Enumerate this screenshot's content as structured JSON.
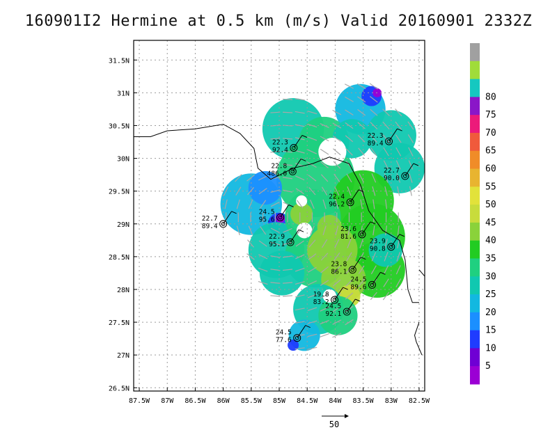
{
  "title": "160901I2 Hermine at 0.5 km (m/s) Valid 20160901 2332Z",
  "map": {
    "lon_range": [
      -87.6,
      -82.4
    ],
    "lat_range": [
      26.45,
      31.8
    ],
    "x_ticks": [
      "87.5W",
      "87W",
      "86.5W",
      "86W",
      "85.5W",
      "85W",
      "84.5W",
      "84W",
      "83.5W",
      "83W",
      "82.5W"
    ],
    "x_tick_values": [
      -87.5,
      -87,
      -86.5,
      -86,
      -85.5,
      -85,
      -84.5,
      -84,
      -83.5,
      -83,
      -82.5
    ],
    "y_ticks": [
      "26.5N",
      "27N",
      "27.5N",
      "28N",
      "28.5N",
      "29N",
      "29.5N",
      "30N",
      "30.5N",
      "31N",
      "31.5N"
    ],
    "y_tick_values": [
      26.5,
      27,
      27.5,
      28,
      28.5,
      29,
      29.5,
      30,
      30.5,
      31,
      31.5
    ],
    "grid": true
  },
  "colorbar": {
    "colors": [
      "#9b00d4",
      "#6f00d4",
      "#1f3cff",
      "#1b8fff",
      "#12b8e0",
      "#10c8b0",
      "#1fd080",
      "#22cc22",
      "#8ad23a",
      "#c8dc3c",
      "#e2e23a",
      "#e8b430",
      "#f08c28",
      "#f05a3c",
      "#ec1a7a",
      "#8a16c8",
      "#15c8c0",
      "#a0dc3a",
      "#a0a0a0"
    ],
    "labels": [
      "5",
      "10",
      "15",
      "20",
      "25",
      "30",
      "35",
      "40",
      "45",
      "50",
      "55",
      "60",
      "65",
      "70",
      "75",
      "80"
    ]
  },
  "reference_vector": {
    "label": "50"
  },
  "stations": [
    {
      "t": "22.3",
      "v": "92.4",
      "lon": -84.74,
      "lat": 30.16
    },
    {
      "t": "22.3",
      "v": "89.4",
      "lon": -83.04,
      "lat": 30.26
    },
    {
      "t": "22.8",
      "v": "486.0",
      "lon": -84.76,
      "lat": 29.8
    },
    {
      "t": "22.7",
      "v": "90.0",
      "lon": -82.75,
      "lat": 29.73
    },
    {
      "t": "22.4",
      "v": "96.2",
      "lon": -83.73,
      "lat": 29.33
    },
    {
      "t": "24.5",
      "v": "95.6",
      "lon": -84.98,
      "lat": 29.1
    },
    {
      "t": "22.7",
      "v": "89.4",
      "lon": -86.0,
      "lat": 29.0
    },
    {
      "t": "23.6",
      "v": "81.6",
      "lon": -83.52,
      "lat": 28.84
    },
    {
      "t": "22.9",
      "v": "95.1",
      "lon": -84.8,
      "lat": 28.72
    },
    {
      "t": "23.9",
      "v": "90.8",
      "lon": -83.0,
      "lat": 28.65
    },
    {
      "t": "23.8",
      "v": "86.1",
      "lon": -83.69,
      "lat": 28.3
    },
    {
      "t": "24.5",
      "v": "89.6",
      "lon": -83.34,
      "lat": 28.07
    },
    {
      "t": "19.8",
      "v": "83.2",
      "lon": -84.01,
      "lat": 27.84
    },
    {
      "t": "24.5",
      "v": "92.1",
      "lon": -83.79,
      "lat": 27.66
    },
    {
      "t": "24.5",
      "v": "77.6",
      "lon": -84.68,
      "lat": 27.26
    }
  ],
  "coastline": [
    [
      [
        -87.6,
        30.33
      ],
      [
        -87.3,
        30.33
      ],
      [
        -87.0,
        30.42
      ],
      [
        -86.5,
        30.45
      ],
      [
        -86.0,
        30.52
      ],
      [
        -85.7,
        30.38
      ],
      [
        -85.45,
        30.15
      ],
      [
        -85.38,
        29.85
      ],
      [
        -85.15,
        29.68
      ],
      [
        -84.75,
        29.85
      ],
      [
        -84.4,
        29.92
      ],
      [
        -84.1,
        30.02
      ],
      [
        -83.75,
        29.92
      ],
      [
        -83.55,
        29.6
      ],
      [
        -83.4,
        29.2
      ],
      [
        -83.15,
        28.9
      ],
      [
        -82.85,
        28.75
      ],
      [
        -82.75,
        28.45
      ],
      [
        -82.7,
        28.0
      ],
      [
        -82.62,
        27.8
      ],
      [
        -82.5,
        27.8
      ]
    ],
    [
      [
        -82.5,
        27.5
      ],
      [
        -82.58,
        27.3
      ],
      [
        -82.55,
        27.2
      ],
      [
        -82.45,
        27.0
      ]
    ],
    [
      [
        -82.5,
        28.3
      ],
      [
        -82.4,
        28.2
      ]
    ]
  ],
  "intensity_field": [
    {
      "lon": -84.75,
      "lat": 30.45,
      "r": 0.55,
      "c": "#10c8b0"
    },
    {
      "lon": -83.55,
      "lat": 30.75,
      "r": 0.45,
      "c": "#12b8e0"
    },
    {
      "lon": -83.35,
      "lat": 30.95,
      "r": 0.18,
      "c": "#1f3cff"
    },
    {
      "lon": -83.25,
      "lat": 31.0,
      "r": 0.08,
      "c": "#9b00d4"
    },
    {
      "lon": -83.0,
      "lat": 30.35,
      "r": 0.45,
      "c": "#10c8b0"
    },
    {
      "lon": -82.85,
      "lat": 29.85,
      "r": 0.45,
      "c": "#10c8b0"
    },
    {
      "lon": -84.2,
      "lat": 30.25,
      "r": 0.45,
      "c": "#1fd080"
    },
    {
      "lon": -84.35,
      "lat": 29.7,
      "r": 0.7,
      "c": "#1fd080"
    },
    {
      "lon": -85.5,
      "lat": 29.3,
      "r": 0.55,
      "c": "#12b8e0"
    },
    {
      "lon": -85.25,
      "lat": 29.55,
      "r": 0.3,
      "c": "#1b8fff"
    },
    {
      "lon": -85.0,
      "lat": 29.0,
      "r": 0.2,
      "c": "#1f3cff"
    },
    {
      "lon": -84.98,
      "lat": 29.08,
      "r": 0.08,
      "c": "#9b00d4"
    },
    {
      "lon": -85.05,
      "lat": 28.6,
      "r": 0.5,
      "c": "#10c8b0"
    },
    {
      "lon": -83.5,
      "lat": 29.35,
      "r": 0.55,
      "c": "#22cc22"
    },
    {
      "lon": -83.35,
      "lat": 28.8,
      "r": 0.6,
      "c": "#22cc22"
    },
    {
      "lon": -83.25,
      "lat": 28.3,
      "r": 0.5,
      "c": "#22cc22"
    },
    {
      "lon": -84.35,
      "lat": 28.5,
      "r": 0.55,
      "c": "#1fd080"
    },
    {
      "lon": -84.4,
      "lat": 29.1,
      "r": 0.5,
      "c": "#1fd080"
    },
    {
      "lon": -84.05,
      "lat": 28.6,
      "r": 0.45,
      "c": "#8ad23a"
    },
    {
      "lon": -83.85,
      "lat": 28.15,
      "r": 0.4,
      "c": "#8ad23a"
    },
    {
      "lon": -83.75,
      "lat": 27.9,
      "r": 0.2,
      "c": "#c8dc3c"
    },
    {
      "lon": -84.1,
      "lat": 28.95,
      "r": 0.22,
      "c": "#8ad23a"
    },
    {
      "lon": -84.6,
      "lat": 29.15,
      "r": 0.2,
      "c": "#8ad23a"
    },
    {
      "lon": -84.3,
      "lat": 27.7,
      "r": 0.45,
      "c": "#10c8b0"
    },
    {
      "lon": -83.95,
      "lat": 27.6,
      "r": 0.35,
      "c": "#1fd080"
    },
    {
      "lon": -84.55,
      "lat": 27.3,
      "r": 0.28,
      "c": "#12b8e0"
    },
    {
      "lon": -84.75,
      "lat": 27.15,
      "r": 0.1,
      "c": "#1f3cff"
    },
    {
      "lon": -83.1,
      "lat": 28.6,
      "r": 0.3,
      "c": "#10c8b0"
    },
    {
      "lon": -84.95,
      "lat": 28.25,
      "r": 0.4,
      "c": "#10c8b0"
    },
    {
      "lon": -83.7,
      "lat": 30.3,
      "r": 0.35,
      "c": "#10c8b0"
    }
  ],
  "holes": [
    {
      "lon": -84.55,
      "lat": 28.9,
      "r": 0.14
    },
    {
      "lon": -84.1,
      "lat": 27.9,
      "r": 0.12
    },
    {
      "lon": -84.05,
      "lat": 30.1,
      "r": 0.25
    },
    {
      "lon": -84.6,
      "lat": 29.35,
      "r": 0.1
    }
  ]
}
